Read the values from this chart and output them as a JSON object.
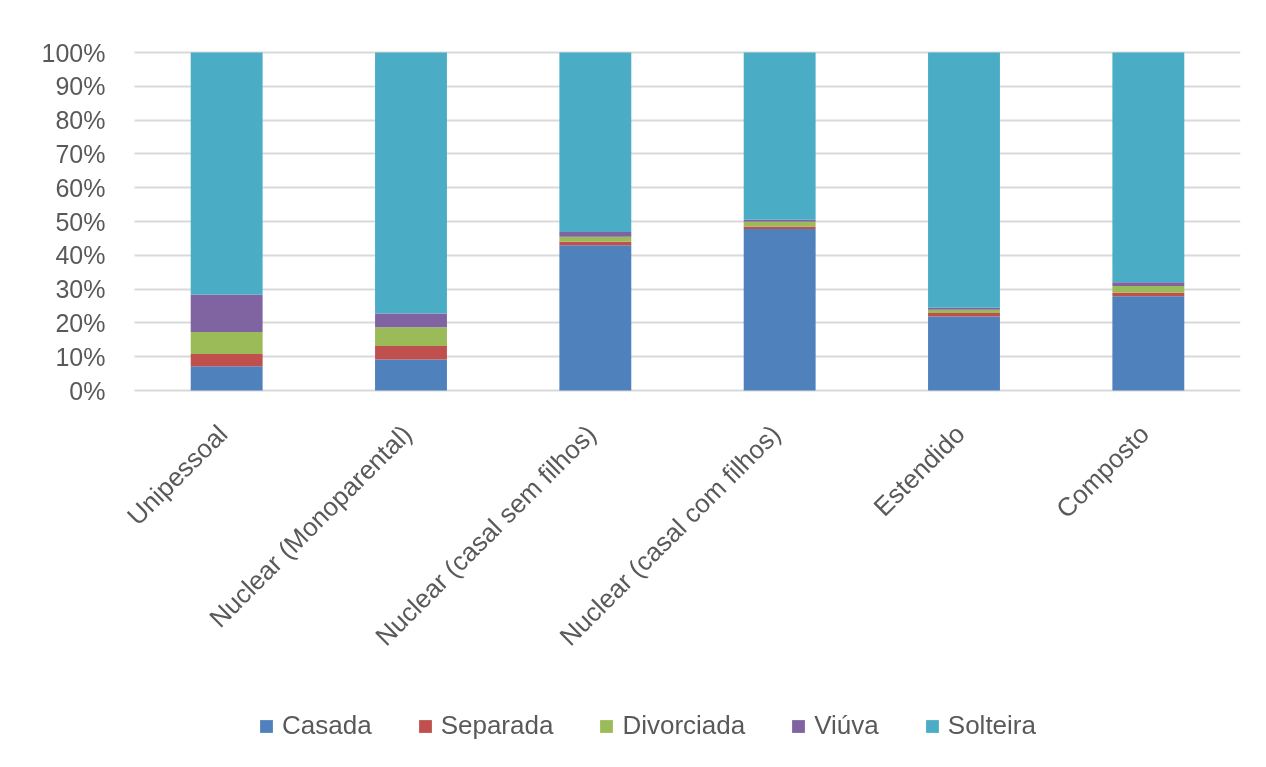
{
  "chart_data": {
    "type": "bar",
    "stacked": true,
    "categories": [
      "Unipessoal",
      "Nuclear (Monoparental)",
      "Nuclear (casal sem filhos)",
      "Nuclear (casal com filhos)",
      "Estendido",
      "Composto"
    ],
    "series": [
      {
        "name": "Casada",
        "color": "#4f81bd",
        "values": [
          7.2,
          9.2,
          43.0,
          47.8,
          21.9,
          27.9
        ]
      },
      {
        "name": "Separada",
        "color": "#c0504d",
        "values": [
          3.6,
          4.0,
          1.0,
          0.7,
          1.0,
          1.0
        ]
      },
      {
        "name": "Divorciada",
        "color": "#9bbb59",
        "values": [
          6.5,
          5.5,
          1.5,
          1.4,
          1.0,
          2.0
        ]
      },
      {
        "name": "Viúva",
        "color": "#8064a2",
        "values": [
          11.1,
          4.1,
          1.4,
          0.6,
          0.6,
          1.1
        ]
      },
      {
        "name": "Solteira",
        "color": "#4bacc6",
        "values": [
          71.6,
          77.2,
          53.1,
          49.5,
          75.5,
          68.0
        ]
      }
    ],
    "ylim": [
      0,
      100
    ],
    "yticks": [
      {
        "value": 0,
        "label": "0%"
      },
      {
        "value": 10,
        "label": "10%"
      },
      {
        "value": 20,
        "label": "20%"
      },
      {
        "value": 30,
        "label": "30%"
      },
      {
        "value": 40,
        "label": "40%"
      },
      {
        "value": 50,
        "label": "50%"
      },
      {
        "value": 60,
        "label": "60%"
      },
      {
        "value": 70,
        "label": "70%"
      },
      {
        "value": 80,
        "label": "80%"
      },
      {
        "value": 90,
        "label": "90%"
      },
      {
        "value": 100,
        "label": "100%"
      }
    ],
    "grid": "y",
    "legend": "bottom"
  }
}
